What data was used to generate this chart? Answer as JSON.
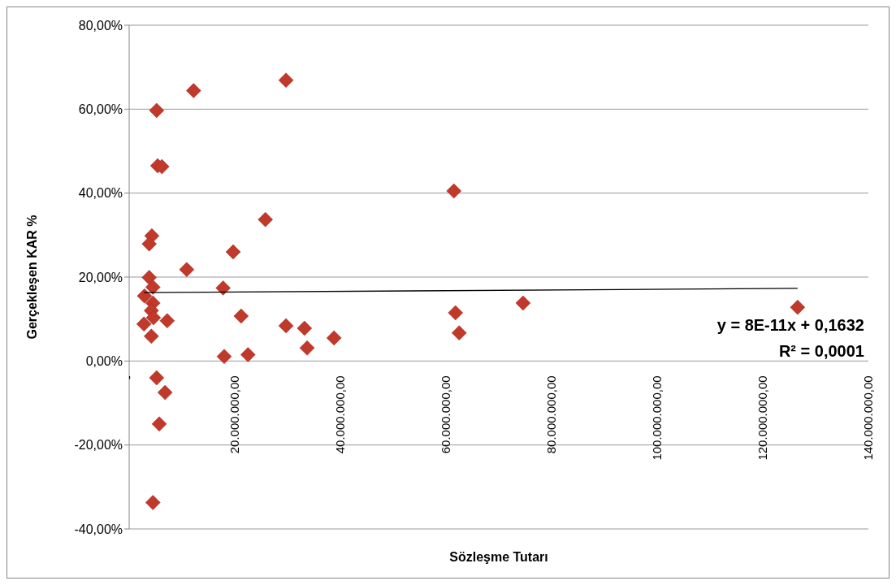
{
  "chart_data": {
    "type": "scatter",
    "xlabel": "Sözleşme Tutarı",
    "ylabel": "Gerçekleşen KAR %",
    "xlim": [
      0,
      140000000
    ],
    "xticks": [
      {
        "value": 0,
        "label": "-"
      },
      {
        "value": 20000000,
        "label": "20.000.000,00"
      },
      {
        "value": 40000000,
        "label": "40.000.000,00"
      },
      {
        "value": 60000000,
        "label": "60.000.000,00"
      },
      {
        "value": 80000000,
        "label": "80.000.000,00"
      },
      {
        "value": 100000000,
        "label": "100.000.000,00"
      },
      {
        "value": 120000000,
        "label": "120.000.000,00"
      },
      {
        "value": 140000000,
        "label": "140.000.000,00"
      }
    ],
    "ylim": [
      -40,
      80
    ],
    "yticks": [
      {
        "value": -40,
        "label": "-40,00%"
      },
      {
        "value": -20,
        "label": "-20,00%"
      },
      {
        "value": 0,
        "label": "0,00%"
      },
      {
        "value": 20,
        "label": "20,00%"
      },
      {
        "value": 40,
        "label": "40,00%"
      },
      {
        "value": 60,
        "label": "60,00%"
      },
      {
        "value": 80,
        "label": "80,00%"
      }
    ],
    "grid": "y",
    "marker": "diamond",
    "annotations": [
      "y = 8E-11x + 0,1632",
      "R² = 0,0001"
    ],
    "series": [
      {
        "color": "#c0392b",
        "x": [
          12200000,
          29700000,
          5200000,
          5400000,
          6200000,
          25800000,
          61500000,
          19700000,
          10900000,
          4300000,
          3800000,
          3800000,
          4500000,
          2900000,
          4500000,
          4200000,
          4600000,
          2800000,
          7200000,
          4200000,
          5200000,
          6800000,
          5700000,
          4500000,
          17800000,
          21200000,
          29700000,
          33200000,
          33700000,
          38800000,
          18000000,
          22500000,
          61800000,
          62500000,
          74600000,
          126600000
        ],
        "values": [
          64.4,
          66.9,
          59.7,
          46.5,
          46.3,
          33.7,
          40.5,
          26.0,
          21.8,
          29.8,
          27.9,
          19.9,
          17.6,
          15.5,
          13.8,
          12.0,
          10.3,
          8.8,
          9.6,
          5.9,
          -4.0,
          -7.5,
          -15.0,
          -33.7,
          17.4,
          10.7,
          8.4,
          7.8,
          3.1,
          5.5,
          1.1,
          1.5,
          11.5,
          6.7,
          13.8,
          12.8
        ]
      },
      {
        "type": "line",
        "color": "#000000",
        "marker": "none",
        "x": [
          2800000,
          126600000
        ],
        "values": [
          16.3,
          17.3
        ]
      }
    ]
  }
}
